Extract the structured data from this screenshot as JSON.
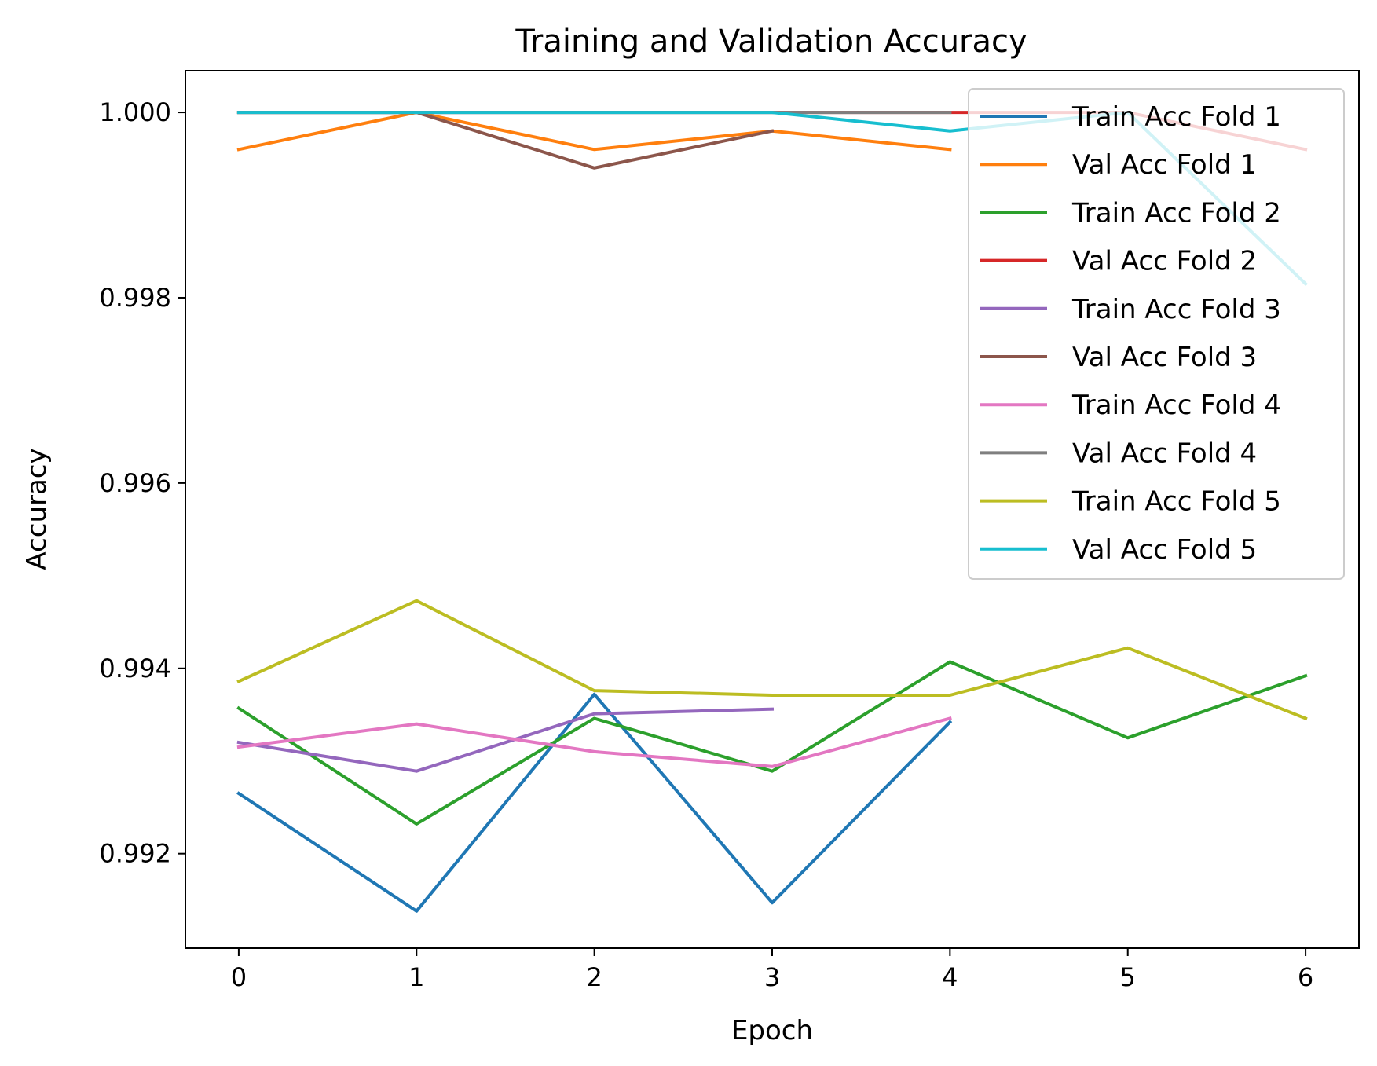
{
  "chart_data": {
    "type": "line",
    "title": "Training and Validation Accuracy",
    "xlabel": "Epoch",
    "ylabel": "Accuracy",
    "xlim": [
      -0.3,
      6.3
    ],
    "ylim": [
      0.99098,
      1.00045
    ],
    "x_ticks": [
      0,
      1,
      2,
      3,
      4,
      5,
      6
    ],
    "y_ticks": [
      0.992,
      0.994,
      0.996,
      0.998,
      1.0
    ],
    "x_tick_labels": [
      "0",
      "1",
      "2",
      "3",
      "4",
      "5",
      "6"
    ],
    "y_tick_labels": [
      "0.992",
      "0.994",
      "0.996",
      "0.998",
      "1.000"
    ],
    "grid": false,
    "legend_position": "top-right",
    "series": [
      {
        "name": "Train Acc Fold 1",
        "color": "#1f77b4",
        "x": [
          0,
          1,
          2,
          3,
          4
        ],
        "values": [
          0.99265,
          0.99138,
          0.99372,
          0.99147,
          0.99342
        ]
      },
      {
        "name": "Val Acc Fold 1",
        "color": "#ff7f0e",
        "x": [
          0,
          1,
          2,
          3,
          4
        ],
        "values": [
          0.9996,
          1.0,
          0.9996,
          0.9998,
          0.9996
        ]
      },
      {
        "name": "Train Acc Fold 2",
        "color": "#2ca02c",
        "x": [
          0,
          1,
          2,
          3,
          4,
          5,
          6
        ],
        "values": [
          0.99357,
          0.99232,
          0.99346,
          0.99289,
          0.99407,
          0.99325,
          0.99392
        ]
      },
      {
        "name": "Val Acc Fold 2",
        "color": "#d62728",
        "x": [
          0,
          1,
          2,
          3,
          4,
          5,
          6
        ],
        "values": [
          1.0,
          1.0,
          1.0,
          1.0,
          1.0,
          1.0,
          0.9996
        ]
      },
      {
        "name": "Train Acc Fold 3",
        "color": "#9467bd",
        "x": [
          0,
          1,
          2,
          3
        ],
        "values": [
          0.9932,
          0.99289,
          0.99351,
          0.99356
        ]
      },
      {
        "name": "Val Acc Fold 3",
        "color": "#8c564b",
        "x": [
          0,
          1,
          2,
          3
        ],
        "values": [
          1.0,
          1.0,
          0.9994,
          0.9998
        ]
      },
      {
        "name": "Train Acc Fold 4",
        "color": "#e377c2",
        "x": [
          0,
          1,
          2,
          3,
          4
        ],
        "values": [
          0.99315,
          0.9934,
          0.9931,
          0.99294,
          0.99346
        ]
      },
      {
        "name": "Val Acc Fold 4",
        "color": "#7f7f7f",
        "x": [
          0,
          1,
          2,
          3,
          4
        ],
        "values": [
          1.0,
          1.0,
          1.0,
          1.0,
          1.0
        ]
      },
      {
        "name": "Train Acc Fold 5",
        "color": "#bcbd22",
        "x": [
          0,
          1,
          2,
          3,
          4,
          5,
          6
        ],
        "values": [
          0.99386,
          0.99473,
          0.99376,
          0.99371,
          0.99371,
          0.99422,
          0.99346
        ]
      },
      {
        "name": "Val Acc Fold 5",
        "color": "#17becf",
        "x": [
          0,
          1,
          2,
          3,
          4,
          5,
          6
        ],
        "values": [
          1.0,
          1.0,
          1.0,
          1.0,
          0.9998,
          1.0,
          0.99815
        ]
      }
    ]
  }
}
